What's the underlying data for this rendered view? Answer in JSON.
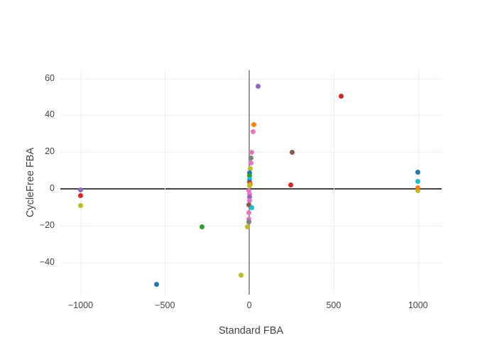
{
  "chart_data": {
    "type": "scatter",
    "title": "",
    "xlabel": "Standard FBA",
    "ylabel": "CycleFree FBA",
    "xlim": [
      -1120,
      1140
    ],
    "ylim": [
      -57.5,
      64.5
    ],
    "x_ticks": [
      -1000,
      -500,
      0,
      500,
      1000
    ],
    "y_ticks": [
      -40,
      -20,
      0,
      20,
      40,
      60
    ],
    "grid": true,
    "zeroline": true,
    "legend": "none",
    "marker": {
      "size": 7
    },
    "palette": {
      "blue": "#1f77b4",
      "orange": "#ff7f0e",
      "green": "#2ca02c",
      "red": "#d62728",
      "purple": "#9467bd",
      "brown": "#8c564b",
      "pink": "#e377c2",
      "gray": "#7f7f7f",
      "olive": "#bcbd22",
      "cyan": "#17becf"
    },
    "points": [
      {
        "x": -1000,
        "y": -0.5,
        "color": "#9467bd"
      },
      {
        "x": -1000,
        "y": -3.5,
        "color": "#d62728"
      },
      {
        "x": -1000,
        "y": -9,
        "color": "#bcbd22"
      },
      {
        "x": -550,
        "y": -52,
        "color": "#1f77b4"
      },
      {
        "x": -280,
        "y": -20.5,
        "color": "#2ca02c"
      },
      {
        "x": -50,
        "y": -47,
        "color": "#bcbd22"
      },
      {
        "x": 50,
        "y": 56,
        "color": "#9467bd"
      },
      {
        "x": 28,
        "y": 35,
        "color": "#ff7f0e"
      },
      {
        "x": 22,
        "y": 31,
        "color": "#e377c2"
      },
      {
        "x": 255,
        "y": 20,
        "color": "#8c564b"
      },
      {
        "x": 245,
        "y": 2.3,
        "color": "#d62728"
      },
      {
        "x": 545,
        "y": 50.5,
        "color": "#d62728"
      },
      {
        "x": 1000,
        "y": 9,
        "color": "#1f77b4"
      },
      {
        "x": 1000,
        "y": 4,
        "color": "#17becf"
      },
      {
        "x": 1000,
        "y": -0.8,
        "color": "#bcbd22"
      },
      {
        "x": 1000,
        "y": 0.5,
        "color": "#ff7f0e"
      },
      {
        "x": 14,
        "y": 19.8,
        "color": "#e377c2"
      },
      {
        "x": 10,
        "y": 16.8,
        "color": "#7f7f7f"
      },
      {
        "x": 8,
        "y": 14,
        "color": "#e377c2"
      },
      {
        "x": 5,
        "y": 11,
        "color": "#bcbd22"
      },
      {
        "x": 2,
        "y": 8.8,
        "color": "#1f77b4"
      },
      {
        "x": 2,
        "y": 7,
        "color": "#2ca02c"
      },
      {
        "x": 2,
        "y": 5.4,
        "color": "#17becf"
      },
      {
        "x": 2,
        "y": 3.8,
        "color": "#8c564b"
      },
      {
        "x": 6,
        "y": 2.4,
        "color": "#ff7f0e"
      },
      {
        "x": 1,
        "y": 1.8,
        "color": "#bcbd22"
      },
      {
        "x": -3,
        "y": -0.8,
        "color": "#e377c2"
      },
      {
        "x": 1,
        "y": -2.7,
        "color": "#e377c2"
      },
      {
        "x": 1,
        "y": -4.6,
        "color": "#9467bd"
      },
      {
        "x": 1,
        "y": -6.5,
        "color": "#e377c2"
      },
      {
        "x": -2,
        "y": -8.8,
        "color": "#8c564b"
      },
      {
        "x": 15,
        "y": -10.3,
        "color": "#17becf"
      },
      {
        "x": -4,
        "y": -13,
        "color": "#e377c2"
      },
      {
        "x": -4,
        "y": -16.2,
        "color": "#e377c2"
      },
      {
        "x": -2,
        "y": -18,
        "color": "#7f7f7f"
      },
      {
        "x": -11,
        "y": -20.8,
        "color": "#bcbd22"
      }
    ]
  }
}
